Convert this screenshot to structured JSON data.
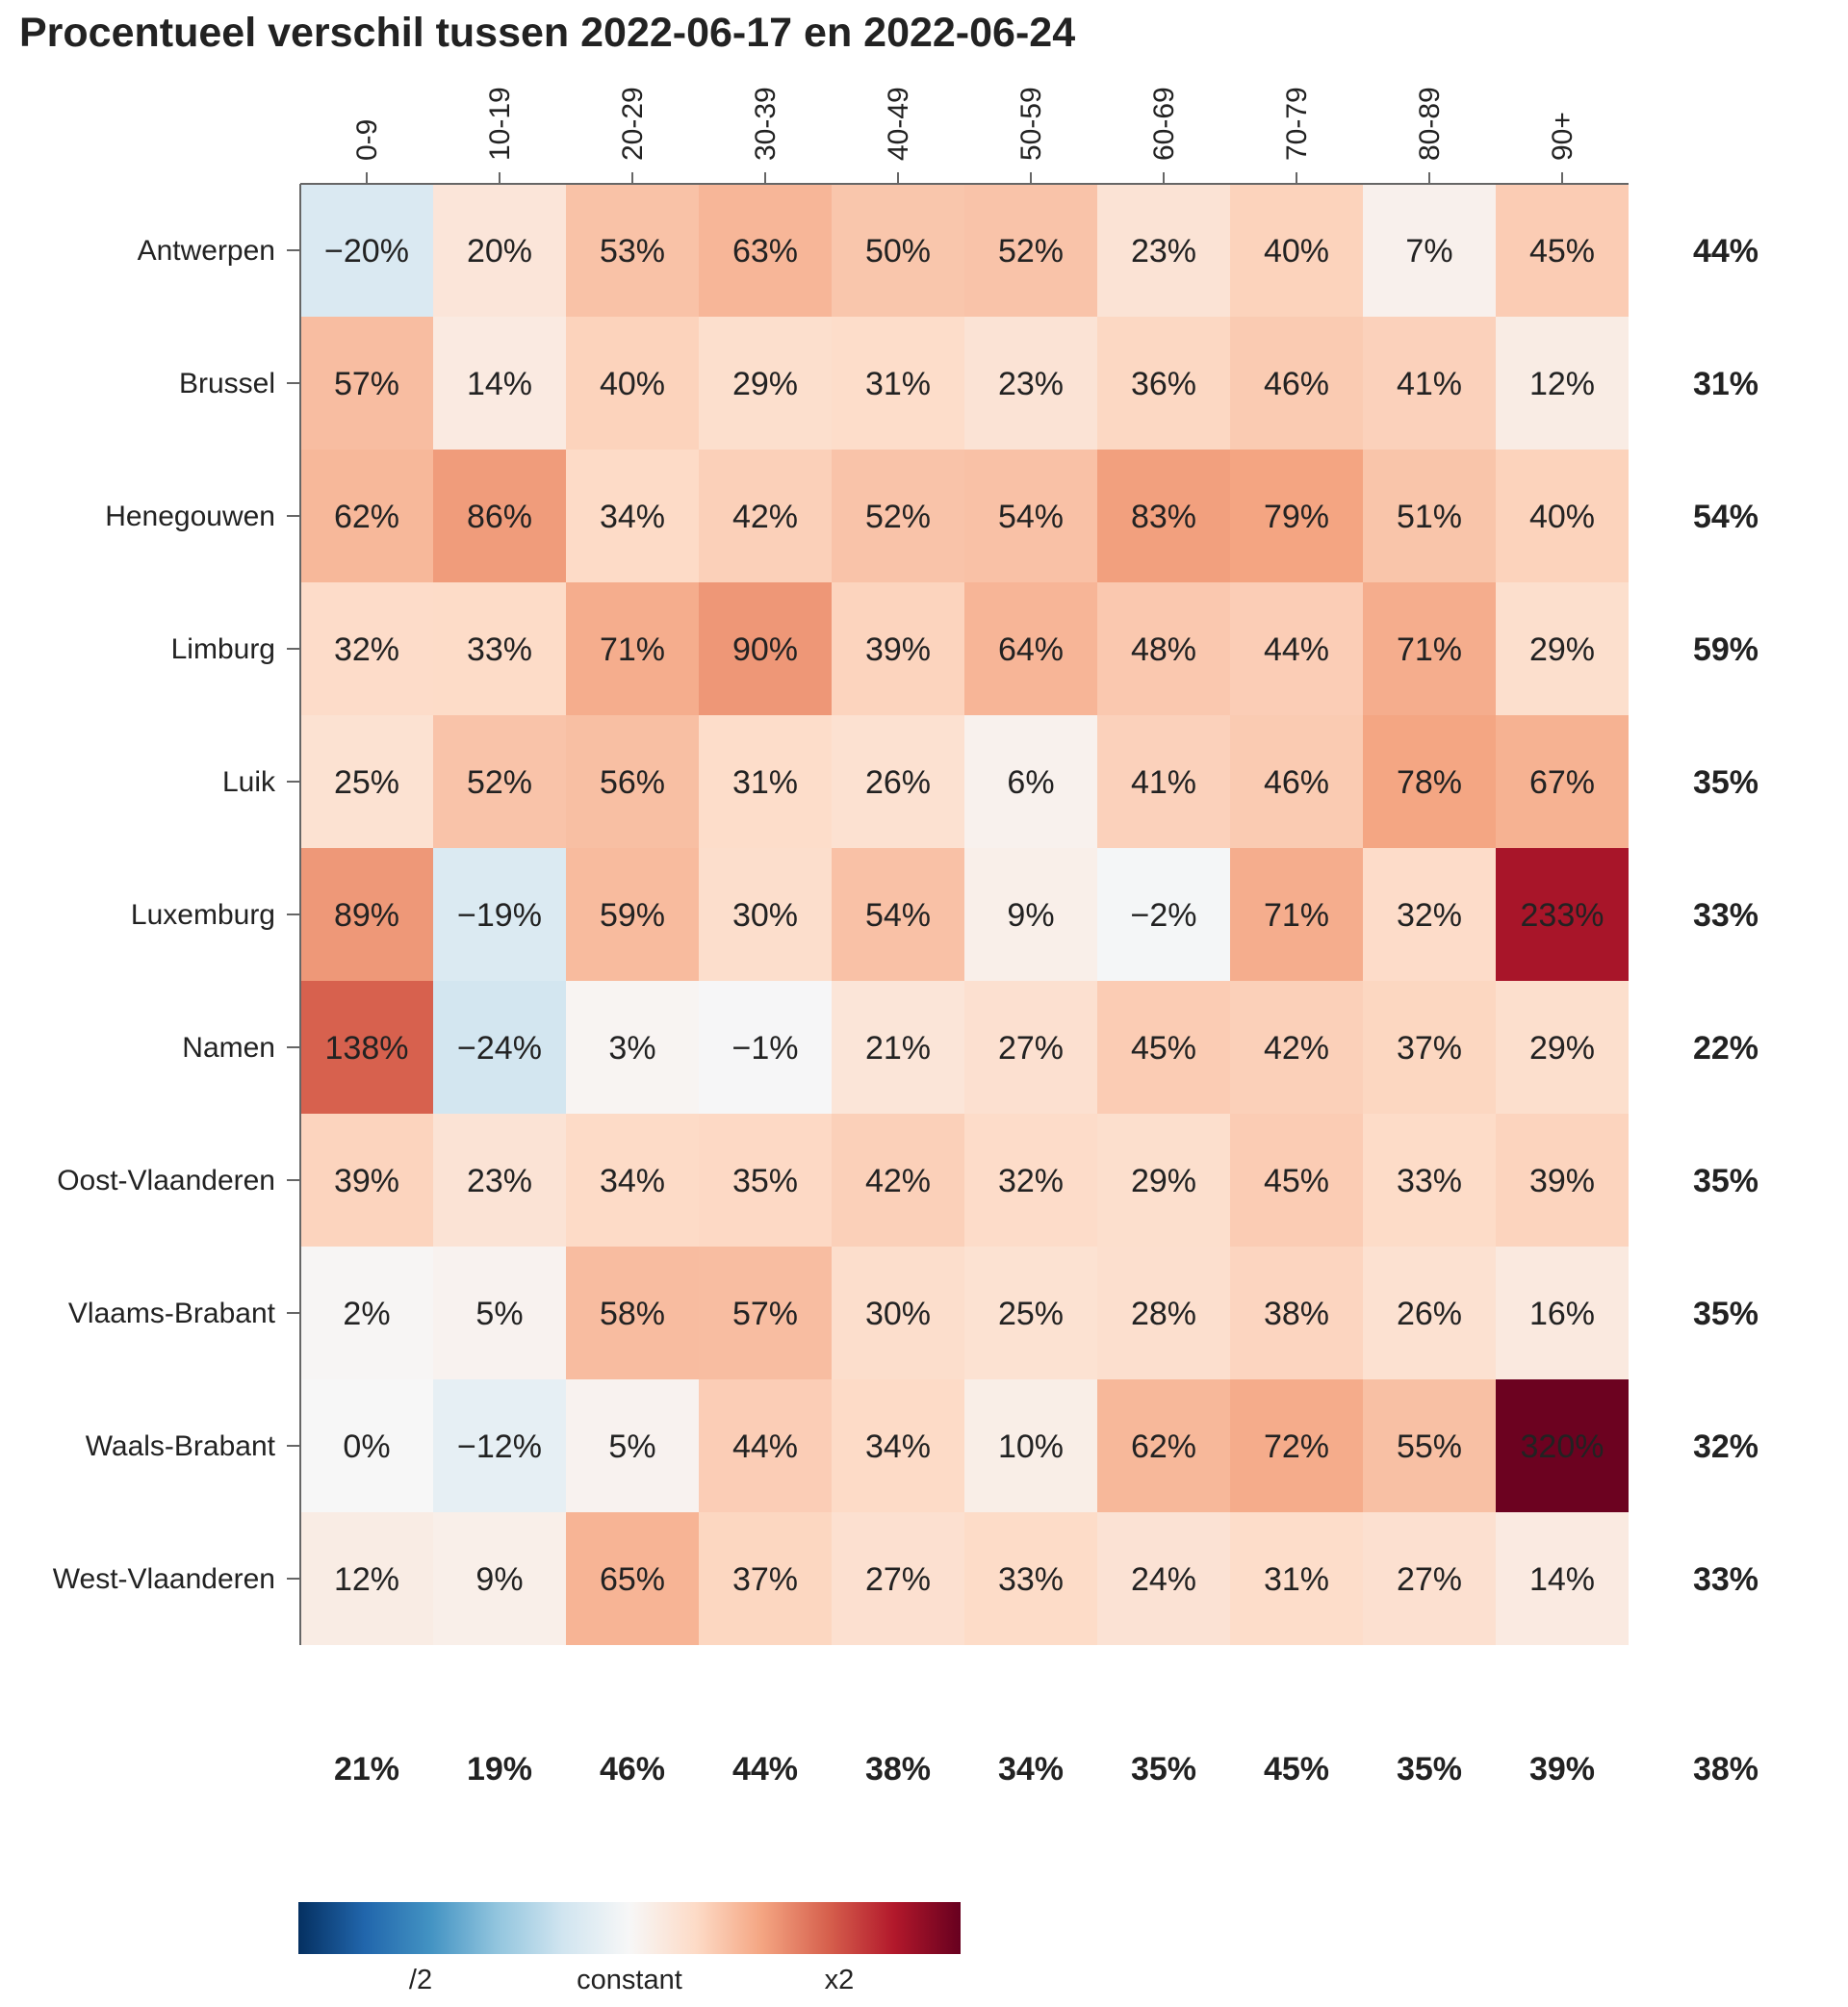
{
  "chart_data": {
    "type": "heatmap",
    "title": "Procentueel verschil tussen 2022-06-17 en 2022-06-24",
    "columns": [
      "0-9",
      "10-19",
      "20-29",
      "30-39",
      "40-49",
      "50-59",
      "60-69",
      "70-79",
      "80-89",
      "90+"
    ],
    "rows": [
      "Antwerpen",
      "Brussel",
      "Henegouwen",
      "Limburg",
      "Luik",
      "Luxemburg",
      "Namen",
      "Oost-Vlaanderen",
      "Vlaams-Brabant",
      "Waals-Brabant",
      "West-Vlaanderen"
    ],
    "values": [
      [
        -20,
        20,
        53,
        63,
        50,
        52,
        23,
        40,
        7,
        45
      ],
      [
        57,
        14,
        40,
        29,
        31,
        23,
        36,
        46,
        41,
        12
      ],
      [
        62,
        86,
        34,
        42,
        52,
        54,
        83,
        79,
        51,
        40
      ],
      [
        32,
        33,
        71,
        90,
        39,
        64,
        48,
        44,
        71,
        29
      ],
      [
        25,
        52,
        56,
        31,
        26,
        6,
        41,
        46,
        78,
        67
      ],
      [
        89,
        -19,
        59,
        30,
        54,
        9,
        -2,
        71,
        32,
        233
      ],
      [
        138,
        -24,
        3,
        -1,
        21,
        27,
        45,
        42,
        37,
        29
      ],
      [
        39,
        23,
        34,
        35,
        42,
        32,
        29,
        45,
        33,
        39
      ],
      [
        2,
        5,
        58,
        57,
        30,
        25,
        28,
        38,
        26,
        16
      ],
      [
        0,
        -12,
        5,
        44,
        34,
        10,
        62,
        72,
        55,
        320
      ],
      [
        12,
        9,
        65,
        37,
        27,
        33,
        24,
        31,
        27,
        14
      ]
    ],
    "row_totals": [
      44,
      31,
      54,
      59,
      35,
      33,
      22,
      35,
      35,
      32,
      33
    ],
    "column_totals": [
      21,
      19,
      46,
      44,
      38,
      34,
      35,
      45,
      35,
      39
    ],
    "grand_total": 38,
    "value_format": "percent",
    "color_scale": {
      "type": "diverging-log",
      "low_label": "/2",
      "mid_label": "constant",
      "high_label": "x2",
      "colors": [
        "#053061",
        "#2166ac",
        "#4393c3",
        "#92c5de",
        "#d1e5f0",
        "#f7f7f7",
        "#fddbc7",
        "#f4a582",
        "#d6604d",
        "#b2182b",
        "#67001f"
      ]
    }
  }
}
